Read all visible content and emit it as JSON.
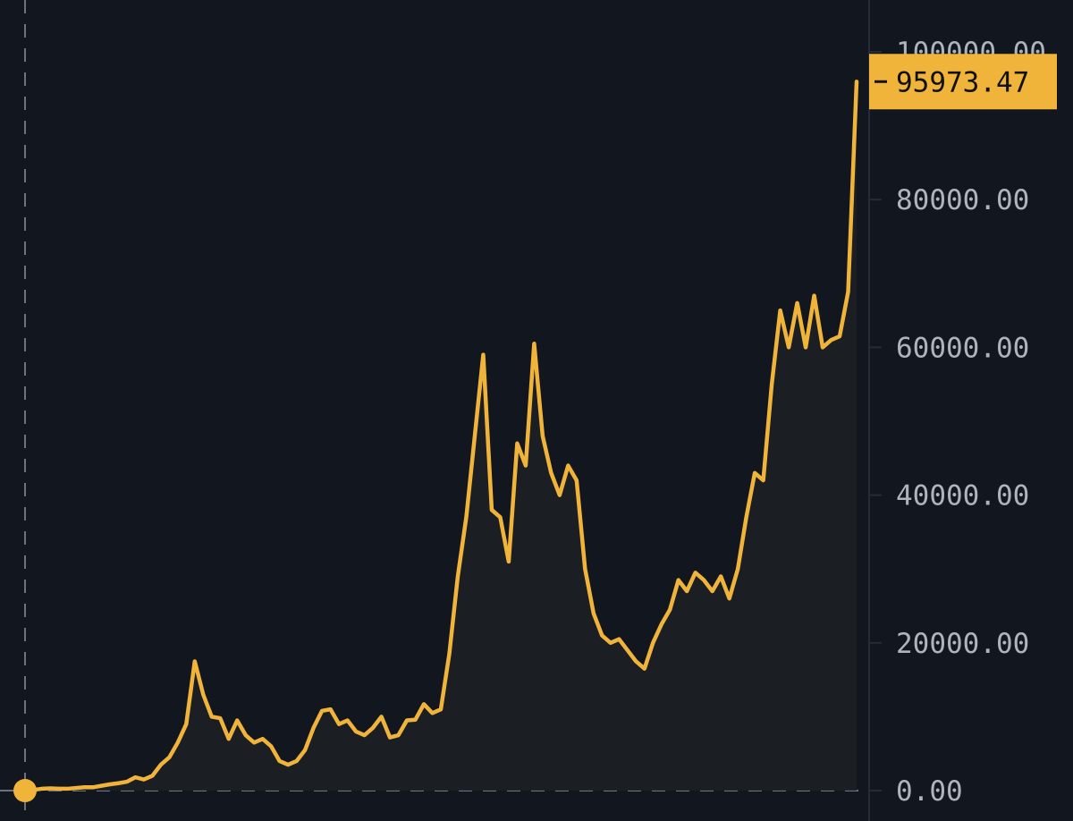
{
  "chart_data": {
    "type": "area",
    "title": "",
    "xlabel": "",
    "ylabel": "",
    "ylim": [
      0,
      106000
    ],
    "y_ticks": [
      "0.00",
      "20000.00",
      "40000.00",
      "60000.00",
      "80000.00",
      "100000.00"
    ],
    "y_tick_values": [
      0,
      20000,
      40000,
      60000,
      80000,
      100000
    ],
    "last_price": "95973.47",
    "colors": {
      "background": "#12161f",
      "line": "#f0b43a",
      "area_fill": "#1d1f24",
      "price_tag": "#f0b43a",
      "guide": "#6b7280",
      "tick_text": "#aeb3bc"
    },
    "grid": false,
    "legend": "none",
    "series": [
      {
        "values": [
          0,
          100,
          250,
          300,
          250,
          250,
          350,
          450,
          450,
          650,
          850,
          1000,
          1200,
          1800,
          1500,
          2000,
          3500,
          4500,
          6500,
          9000,
          17500,
          13000,
          10000,
          9800,
          7000,
          9500,
          7500,
          6500,
          7000,
          6000,
          4000,
          3500,
          4000,
          5500,
          8500,
          10800,
          11000,
          9000,
          9500,
          8000,
          7500,
          8500,
          10000,
          7200,
          7500,
          9500,
          9600,
          11700,
          10500,
          11000,
          18500,
          29000,
          37000,
          48000,
          59000,
          38000,
          37000,
          31000,
          47000,
          44000,
          60500,
          48000,
          43000,
          40000,
          44000,
          42000,
          30000,
          24000,
          21000,
          20000,
          20500,
          19000,
          17500,
          16500,
          20000,
          22500,
          24500,
          28500,
          27000,
          29500,
          28500,
          27000,
          29000,
          26000,
          30000,
          37000,
          43000,
          42000,
          55000,
          65000,
          60000,
          66000,
          60000,
          67000,
          60000,
          61000,
          61500,
          67500,
          95973.47
        ]
      }
    ]
  }
}
